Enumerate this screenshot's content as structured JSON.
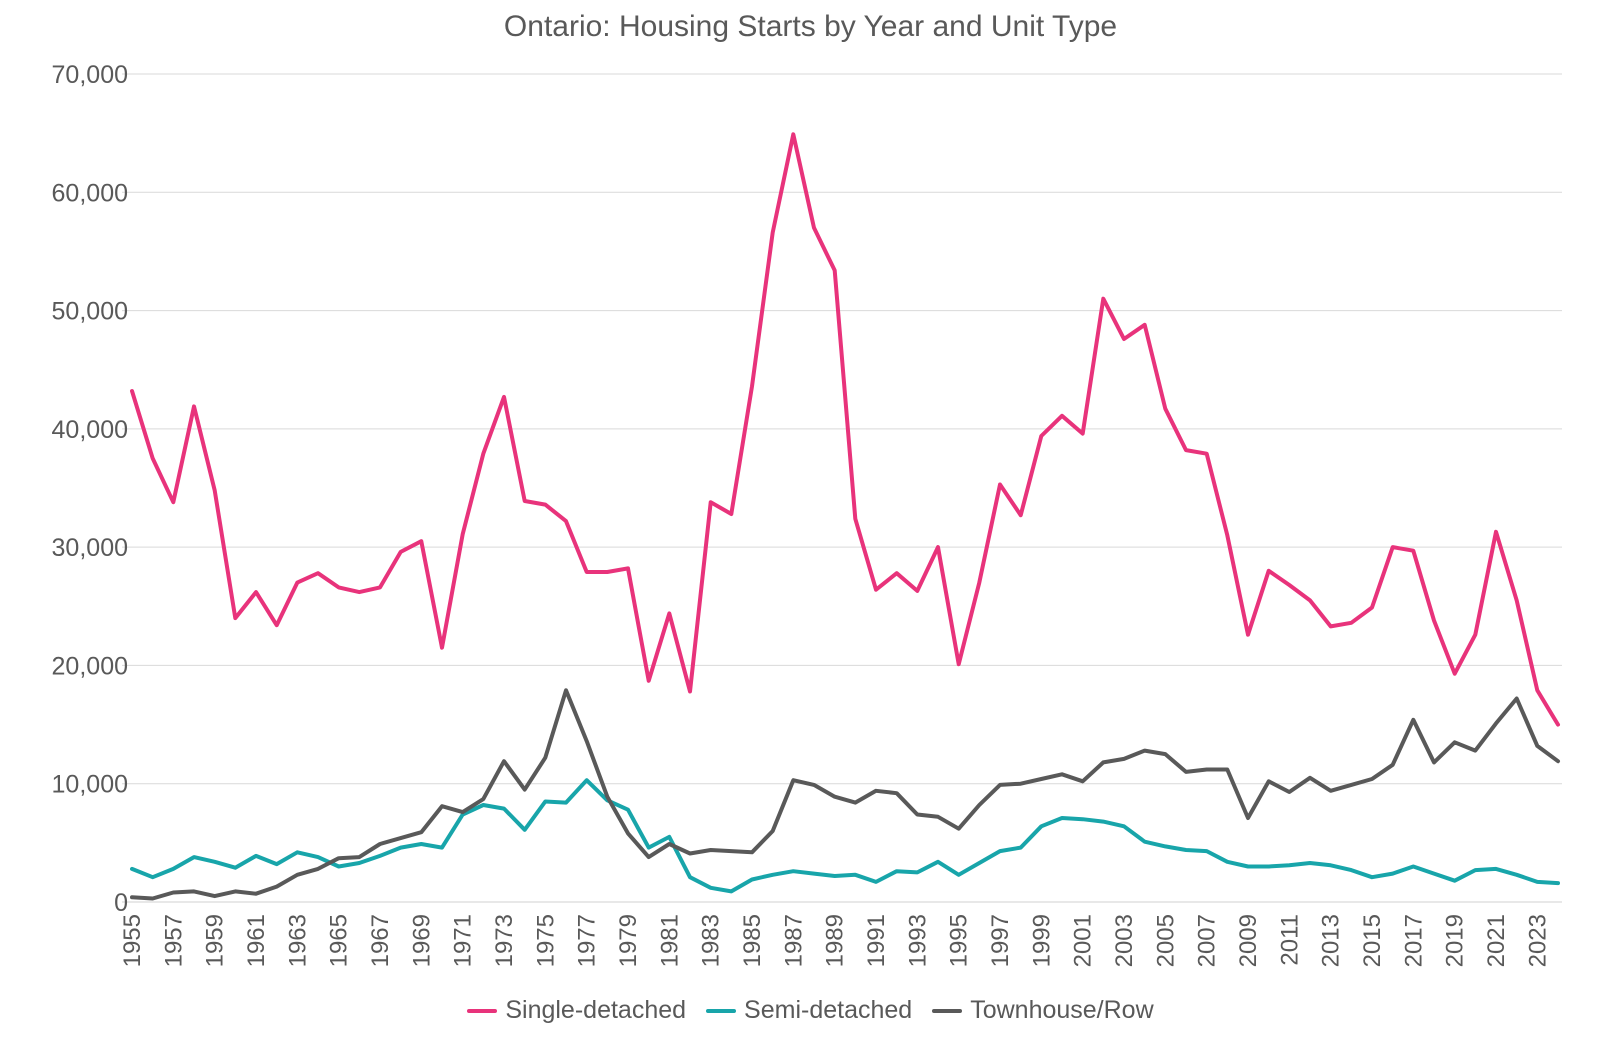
{
  "chart_data": {
    "type": "line",
    "title": "Ontario: Housing Starts by Year and Unit Type",
    "xlabel": "",
    "ylabel": "",
    "ylim": [
      0,
      70000
    ],
    "yticks": [
      0,
      10000,
      20000,
      30000,
      40000,
      50000,
      60000,
      70000
    ],
    "ytick_labels": [
      "0",
      "10,000",
      "20,000",
      "30,000",
      "40,000",
      "50,000",
      "60,000",
      "70,000"
    ],
    "grid": true,
    "legend_position": "bottom",
    "x": [
      1955,
      1956,
      1957,
      1958,
      1959,
      1960,
      1961,
      1962,
      1963,
      1964,
      1965,
      1966,
      1967,
      1968,
      1969,
      1970,
      1971,
      1972,
      1973,
      1974,
      1975,
      1976,
      1977,
      1978,
      1979,
      1980,
      1981,
      1982,
      1983,
      1984,
      1985,
      1986,
      1987,
      1988,
      1989,
      1990,
      1991,
      1992,
      1993,
      1994,
      1995,
      1996,
      1997,
      1998,
      1999,
      2000,
      2001,
      2002,
      2003,
      2004,
      2005,
      2006,
      2007,
      2008,
      2009,
      2010,
      2011,
      2012,
      2013,
      2014,
      2015,
      2016,
      2017,
      2018,
      2019,
      2020,
      2021,
      2022,
      2023,
      2024
    ],
    "x_tick_labels": [
      1955,
      1957,
      1959,
      1961,
      1963,
      1965,
      1967,
      1969,
      1971,
      1973,
      1975,
      1977,
      1979,
      1981,
      1983,
      1985,
      1987,
      1989,
      1991,
      1993,
      1995,
      1997,
      1999,
      2001,
      2003,
      2005,
      2007,
      2009,
      2011,
      2013,
      2015,
      2017,
      2019,
      2021,
      2023
    ],
    "series": [
      {
        "name": "Single-detached",
        "color": "#e8337b",
        "values": [
          43200,
          37500,
          33800,
          41900,
          34800,
          24000,
          26200,
          23400,
          27000,
          27800,
          26600,
          26200,
          26600,
          29600,
          30500,
          21500,
          31100,
          37900,
          42700,
          33900,
          33600,
          32200,
          27900,
          27900,
          28200,
          18700,
          24400,
          17800,
          33800,
          32800,
          43600,
          56600,
          64900,
          57000,
          53400,
          32400,
          26400,
          27800,
          26300,
          30000,
          20100,
          27000,
          35300,
          32700,
          39400,
          41100,
          39600,
          51000,
          47600,
          48800,
          41700,
          38200,
          37900,
          31000,
          22600,
          28000,
          26800,
          25500,
          23300,
          23600,
          24900,
          30000,
          29700,
          23800,
          19300,
          22600,
          31300,
          25500,
          17900,
          15000
        ]
      },
      {
        "name": "Semi-detached",
        "color": "#18a5aa",
        "values": [
          2800,
          2100,
          2800,
          3800,
          3400,
          2900,
          3900,
          3200,
          4200,
          3800,
          3000,
          3300,
          3900,
          4600,
          4900,
          4600,
          7400,
          8200,
          7900,
          6100,
          8500,
          8400,
          10300,
          8600,
          7800,
          4600,
          5500,
          2100,
          1200,
          900,
          1900,
          2300,
          2600,
          2400,
          2200,
          2300,
          1700,
          2600,
          2500,
          3400,
          2300,
          3300,
          4300,
          4600,
          6400,
          7100,
          7000,
          6800,
          6400,
          5100,
          4700,
          4400,
          4300,
          3400,
          3000,
          3000,
          3100,
          3300,
          3100,
          2700,
          2100,
          2400,
          3000,
          2400,
          1800,
          2700,
          2800,
          2300,
          1700,
          1600
        ]
      },
      {
        "name": "Townhouse/Row",
        "color": "#595959",
        "values": [
          400,
          300,
          800,
          900,
          500,
          900,
          700,
          1300,
          2300,
          2800,
          3700,
          3800,
          4900,
          5400,
          5900,
          8100,
          7600,
          8700,
          11900,
          9500,
          12200,
          17900,
          13600,
          8900,
          5800,
          3800,
          4900,
          4100,
          4400,
          4300,
          4200,
          6000,
          10300,
          9900,
          8900,
          8400,
          9400,
          9200,
          7400,
          7200,
          6200,
          8200,
          9900,
          10000,
          10400,
          10800,
          10200,
          11800,
          12100,
          12800,
          12500,
          11000,
          11200,
          11200,
          7100,
          10200,
          9300,
          10500,
          9400,
          9900,
          10400,
          11600,
          15400,
          11800,
          13500,
          12800,
          15100,
          17200,
          13200,
          11900
        ]
      }
    ]
  }
}
